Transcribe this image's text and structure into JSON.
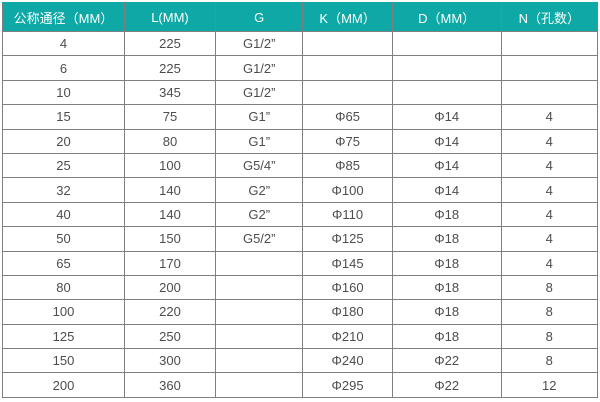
{
  "table": {
    "title": "flange-thread-dimension-spec-table",
    "columns": [
      "公称通径（MM）",
      "L(MM)",
      "G",
      "K（MM）",
      "D（MM）",
      "N（孔数）"
    ],
    "rows": [
      [
        "4",
        "225",
        "G1/2”",
        "",
        "",
        ""
      ],
      [
        "6",
        "225",
        "G1/2”",
        "",
        "",
        ""
      ],
      [
        "10",
        "345",
        "G1/2”",
        "",
        "",
        ""
      ],
      [
        "15",
        "75",
        "G1”",
        "Φ65",
        "Φ14",
        "4"
      ],
      [
        "20",
        "80",
        "G1”",
        "Φ75",
        "Φ14",
        "4"
      ],
      [
        "25",
        "100",
        "G5/4”",
        "Φ85",
        "Φ14",
        "4"
      ],
      [
        "32",
        "140",
        "G2”",
        "Φ100",
        "Φ14",
        "4"
      ],
      [
        "40",
        "140",
        "G2”",
        "Φ110",
        "Φ18",
        "4"
      ],
      [
        "50",
        "150",
        "G5/2”",
        "Φ125",
        "Φ18",
        "4"
      ],
      [
        "65",
        "170",
        "",
        "Φ145",
        "Φ18",
        "4"
      ],
      [
        "80",
        "200",
        "",
        "Φ160",
        "Φ18",
        "8"
      ],
      [
        "100",
        "220",
        "",
        "Φ180",
        "Φ18",
        "8"
      ],
      [
        "125",
        "250",
        "",
        "Φ210",
        "Φ18",
        "8"
      ],
      [
        "150",
        "300",
        "",
        "Φ240",
        "Φ22",
        "8"
      ],
      [
        "200",
        "360",
        "",
        "Φ295",
        "Φ22",
        "12"
      ]
    ],
    "colors": {
      "header_bg": "#0ea8a6",
      "header_text": "#ffffff",
      "border": "#7f7f7f",
      "cell_text": "#4d4d4d",
      "row_bg": "#ffffff"
    }
  }
}
